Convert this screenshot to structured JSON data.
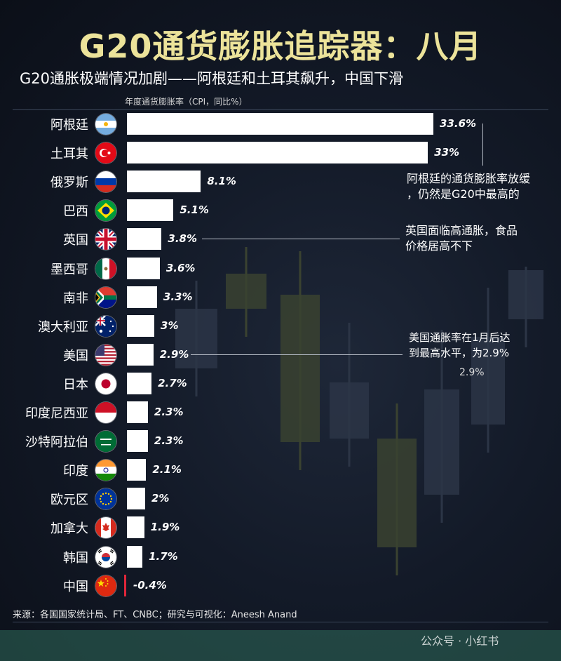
{
  "title": "G20通货膨胀追踪器：八月",
  "subtitle": "G20通胀极端情况加剧——阿根廷和土耳其飙升，中国下滑",
  "chart_data": {
    "type": "bar",
    "orientation": "horizontal",
    "axis_caption": "年度通货膨胀率（CPI，同比%）",
    "categories": [
      "阿根廷",
      "土耳其",
      "俄罗斯",
      "巴西",
      "英国",
      "墨西哥",
      "南非",
      "澳大利亚",
      "美国",
      "日本",
      "印度尼西亚",
      "沙特阿拉伯",
      "印度",
      "欧元区",
      "加拿大",
      "韩国",
      "中国"
    ],
    "values": [
      33.6,
      33,
      8.1,
      5.1,
      3.8,
      3.6,
      3.3,
      3,
      2.9,
      2.7,
      2.3,
      2.3,
      2.1,
      2,
      1.9,
      1.7,
      -0.4
    ],
    "value_labels": [
      "33.6%",
      "33%",
      "8.1%",
      "5.1%",
      "3.8%",
      "3.6%",
      "3.3%",
      "3%",
      "2.9%",
      "2.7%",
      "2.3%",
      "2.3%",
      "2.1%",
      "2%",
      "1.9%",
      "1.7%",
      "-0.4%"
    ],
    "flags": [
      "argentina-flag-icon",
      "turkey-flag-icon",
      "russia-flag-icon",
      "brazil-flag-icon",
      "uk-flag-icon",
      "mexico-flag-icon",
      "south-africa-flag-icon",
      "australia-flag-icon",
      "usa-flag-icon",
      "japan-flag-icon",
      "indonesia-flag-icon",
      "saudi-arabia-flag-icon",
      "india-flag-icon",
      "eu-flag-icon",
      "canada-flag-icon",
      "south-korea-flag-icon",
      "china-flag-icon"
    ],
    "bar_color": "#ffffff",
    "negative_bar_color": "#e0263a",
    "annotations": [
      {
        "text_lines": [
          "阿根廷的通货膨胀率放缓",
          "，仍然是G20中最高的"
        ]
      },
      {
        "text_lines": [
          "英国面临高通胀，食品",
          "价格居高不下"
        ]
      },
      {
        "text_lines": [
          "美国通胀率在1月后达",
          "到最高水平，为2.9%"
        ],
        "extra": "2.9%"
      }
    ]
  },
  "footer": "来源：各国国家统计局、FT、CNBC；研究与可视化：Aneesh Anand",
  "watermark": "公众号 · 小红书",
  "colors": {
    "title": "#ece39a",
    "background": "#131a28"
  }
}
